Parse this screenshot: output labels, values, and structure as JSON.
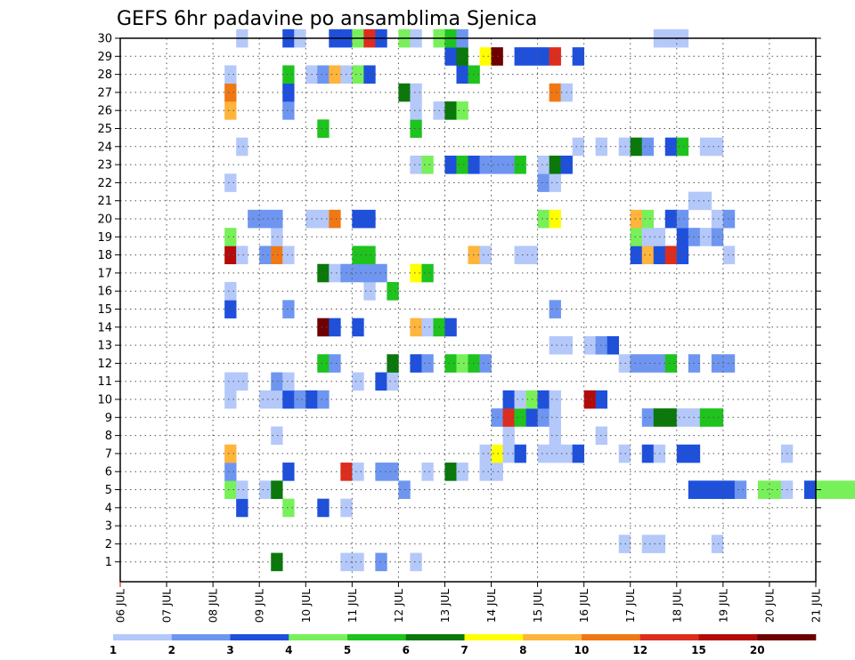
{
  "chart_data": {
    "type": "heatmap",
    "title": "GEFS 6hr padavine po ansamblima Sjenica",
    "y_categories": [
      "1",
      "2",
      "3",
      "4",
      "5",
      "6",
      "7",
      "8",
      "9",
      "10",
      "11",
      "12",
      "13",
      "14",
      "15",
      "16",
      "17",
      "18",
      "19",
      "20",
      "21",
      "22",
      "23",
      "24",
      "25",
      "26",
      "27",
      "28",
      "29",
      "30"
    ],
    "x_tick_labels": [
      "06 JUL",
      "07 JUL",
      "08 JUL",
      "09 JUL",
      "10 JUL",
      "11 JUL",
      "12 JUL",
      "13 JUL",
      "14 JUL",
      "15 JUL",
      "16 JUL",
      "17 JUL",
      "18 JUL",
      "19 JUL",
      "20 JUL",
      "21 JUL"
    ],
    "x_range_days": [
      0,
      15
    ],
    "step_hours": 6,
    "grid": true,
    "colorbar": {
      "labels": [
        "1",
        "2",
        "3",
        "4",
        "5",
        "6",
        "7",
        "8",
        "10",
        "12",
        "15",
        "20"
      ],
      "colors": [
        "#b4c8fa",
        "#6e96f0",
        "#1e50dc",
        "#78f05a",
        "#1ec31e",
        "#0a780a",
        "#ffff00",
        "#ffb43c",
        "#f07814",
        "#dc2d1e",
        "#b40a0a",
        "#6e0000"
      ]
    },
    "cells": [
      [
        1,
        13,
        5
      ],
      [
        1,
        19,
        0
      ],
      [
        1,
        20,
        0
      ],
      [
        1,
        22,
        1
      ],
      [
        1,
        25,
        0
      ],
      [
        2,
        43,
        0
      ],
      [
        2,
        45,
        0
      ],
      [
        2,
        46,
        0
      ],
      [
        2,
        51,
        0
      ],
      [
        4,
        10,
        2
      ],
      [
        4,
        14,
        3
      ],
      [
        4,
        17,
        2
      ],
      [
        4,
        19,
        0
      ],
      [
        5,
        9,
        3
      ],
      [
        5,
        10,
        0
      ],
      [
        5,
        12,
        0
      ],
      [
        5,
        13,
        5
      ],
      [
        5,
        24,
        1
      ],
      [
        5,
        49,
        2
      ],
      [
        5,
        50,
        2
      ],
      [
        5,
        51,
        2
      ],
      [
        5,
        52,
        2
      ],
      [
        5,
        53,
        1
      ],
      [
        5,
        55,
        3
      ],
      [
        5,
        56,
        3
      ],
      [
        5,
        57,
        0
      ],
      [
        5,
        59,
        2
      ],
      [
        5,
        60,
        3
      ],
      [
        5,
        61,
        3
      ],
      [
        5,
        62,
        3
      ],
      [
        5,
        63,
        3
      ],
      [
        5,
        64,
        3
      ],
      [
        5,
        65,
        3
      ],
      [
        5,
        66,
        2
      ],
      [
        5,
        67,
        1
      ],
      [
        6,
        9,
        1
      ],
      [
        6,
        14,
        2
      ],
      [
        6,
        19,
        9
      ],
      [
        6,
        20,
        0
      ],
      [
        6,
        22,
        1
      ],
      [
        6,
        23,
        1
      ],
      [
        6,
        26,
        0
      ],
      [
        6,
        28,
        5
      ],
      [
        6,
        29,
        0
      ],
      [
        6,
        31,
        0
      ],
      [
        6,
        32,
        0
      ],
      [
        7,
        9,
        7
      ],
      [
        7,
        31,
        0
      ],
      [
        7,
        32,
        6
      ],
      [
        7,
        33,
        0
      ],
      [
        7,
        34,
        2
      ],
      [
        7,
        36,
        0
      ],
      [
        7,
        37,
        0
      ],
      [
        7,
        38,
        0
      ],
      [
        7,
        39,
        2
      ],
      [
        7,
        43,
        0
      ],
      [
        7,
        45,
        2
      ],
      [
        7,
        46,
        0
      ],
      [
        7,
        48,
        2
      ],
      [
        7,
        49,
        2
      ],
      [
        7,
        57,
        0
      ],
      [
        8,
        13,
        0
      ],
      [
        8,
        33,
        0
      ],
      [
        8,
        37,
        0
      ],
      [
        8,
        41,
        0
      ],
      [
        9,
        32,
        1
      ],
      [
        9,
        33,
        9
      ],
      [
        9,
        34,
        4
      ],
      [
        9,
        35,
        2
      ],
      [
        9,
        36,
        1
      ],
      [
        9,
        37,
        0
      ],
      [
        9,
        45,
        1
      ],
      [
        9,
        46,
        5
      ],
      [
        9,
        47,
        5
      ],
      [
        9,
        48,
        0
      ],
      [
        9,
        49,
        0
      ],
      [
        9,
        50,
        4
      ],
      [
        9,
        51,
        4
      ],
      [
        10,
        9,
        0
      ],
      [
        10,
        12,
        0
      ],
      [
        10,
        13,
        0
      ],
      [
        10,
        14,
        2
      ],
      [
        10,
        15,
        1
      ],
      [
        10,
        16,
        2
      ],
      [
        10,
        17,
        1
      ],
      [
        10,
        33,
        2
      ],
      [
        10,
        34,
        0
      ],
      [
        10,
        35,
        3
      ],
      [
        10,
        36,
        2
      ],
      [
        10,
        37,
        0
      ],
      [
        10,
        40,
        10
      ],
      [
        10,
        41,
        2
      ],
      [
        11,
        9,
        0
      ],
      [
        11,
        10,
        0
      ],
      [
        11,
        13,
        1
      ],
      [
        11,
        14,
        0
      ],
      [
        11,
        20,
        0
      ],
      [
        11,
        22,
        2
      ],
      [
        11,
        23,
        0
      ],
      [
        12,
        17,
        4
      ],
      [
        12,
        18,
        1
      ],
      [
        12,
        23,
        5
      ],
      [
        12,
        25,
        2
      ],
      [
        12,
        26,
        1
      ],
      [
        12,
        28,
        4
      ],
      [
        12,
        29,
        3
      ],
      [
        12,
        30,
        4
      ],
      [
        12,
        31,
        1
      ],
      [
        12,
        43,
        0
      ],
      [
        12,
        44,
        1
      ],
      [
        12,
        45,
        1
      ],
      [
        12,
        46,
        1
      ],
      [
        12,
        47,
        4
      ],
      [
        12,
        49,
        1
      ],
      [
        12,
        51,
        1
      ],
      [
        12,
        52,
        1
      ],
      [
        13,
        37,
        0
      ],
      [
        13,
        38,
        0
      ],
      [
        13,
        40,
        0
      ],
      [
        13,
        41,
        1
      ],
      [
        13,
        42,
        2
      ],
      [
        14,
        17,
        11
      ],
      [
        14,
        18,
        2
      ],
      [
        14,
        20,
        2
      ],
      [
        14,
        25,
        7
      ],
      [
        14,
        26,
        0
      ],
      [
        14,
        27,
        4
      ],
      [
        14,
        28,
        2
      ],
      [
        15,
        9,
        2
      ],
      [
        15,
        14,
        1
      ],
      [
        15,
        37,
        1
      ],
      [
        16,
        9,
        0
      ],
      [
        16,
        21,
        0
      ],
      [
        16,
        23,
        4
      ],
      [
        17,
        17,
        5
      ],
      [
        17,
        18,
        0
      ],
      [
        17,
        19,
        1
      ],
      [
        17,
        20,
        1
      ],
      [
        17,
        21,
        1
      ],
      [
        17,
        22,
        1
      ],
      [
        17,
        25,
        6
      ],
      [
        17,
        26,
        4
      ],
      [
        18,
        9,
        10
      ],
      [
        18,
        10,
        0
      ],
      [
        18,
        12,
        1
      ],
      [
        18,
        13,
        8
      ],
      [
        18,
        14,
        0
      ],
      [
        18,
        20,
        4
      ],
      [
        18,
        21,
        4
      ],
      [
        18,
        30,
        7
      ],
      [
        18,
        31,
        0
      ],
      [
        18,
        34,
        0
      ],
      [
        18,
        35,
        0
      ],
      [
        18,
        44,
        2
      ],
      [
        18,
        45,
        7
      ],
      [
        18,
        46,
        2
      ],
      [
        18,
        47,
        9
      ],
      [
        18,
        48,
        2
      ],
      [
        18,
        52,
        0
      ],
      [
        19,
        9,
        3
      ],
      [
        19,
        13,
        0
      ],
      [
        19,
        44,
        3
      ],
      [
        19,
        45,
        0
      ],
      [
        19,
        46,
        0
      ],
      [
        19,
        48,
        2
      ],
      [
        19,
        49,
        1
      ],
      [
        19,
        50,
        0
      ],
      [
        19,
        51,
        1
      ],
      [
        20,
        11,
        1
      ],
      [
        20,
        12,
        1
      ],
      [
        20,
        13,
        1
      ],
      [
        20,
        16,
        0
      ],
      [
        20,
        17,
        0
      ],
      [
        20,
        18,
        8
      ],
      [
        20,
        20,
        2
      ],
      [
        20,
        21,
        2
      ],
      [
        20,
        36,
        3
      ],
      [
        20,
        37,
        6
      ],
      [
        20,
        44,
        7
      ],
      [
        20,
        45,
        3
      ],
      [
        20,
        47,
        2
      ],
      [
        20,
        48,
        1
      ],
      [
        20,
        51,
        0
      ],
      [
        20,
        52,
        1
      ],
      [
        21,
        49,
        0
      ],
      [
        21,
        50,
        0
      ],
      [
        22,
        9,
        0
      ],
      [
        22,
        36,
        1
      ],
      [
        22,
        37,
        0
      ],
      [
        23,
        25,
        0
      ],
      [
        23,
        26,
        3
      ],
      [
        23,
        28,
        2
      ],
      [
        23,
        29,
        4
      ],
      [
        23,
        30,
        2
      ],
      [
        23,
        31,
        1
      ],
      [
        23,
        32,
        1
      ],
      [
        23,
        33,
        1
      ],
      [
        23,
        34,
        4
      ],
      [
        23,
        36,
        0
      ],
      [
        23,
        37,
        5
      ],
      [
        23,
        38,
        2
      ],
      [
        24,
        10,
        0
      ],
      [
        24,
        39,
        0
      ],
      [
        24,
        41,
        0
      ],
      [
        24,
        43,
        0
      ],
      [
        24,
        44,
        5
      ],
      [
        24,
        45,
        1
      ],
      [
        24,
        47,
        2
      ],
      [
        24,
        48,
        4
      ],
      [
        24,
        50,
        0
      ],
      [
        24,
        51,
        0
      ],
      [
        25,
        17,
        4
      ],
      [
        25,
        25,
        4
      ],
      [
        26,
        9,
        7
      ],
      [
        26,
        14,
        1
      ],
      [
        26,
        25,
        0
      ],
      [
        26,
        27,
        0
      ],
      [
        26,
        28,
        5
      ],
      [
        26,
        29,
        3
      ],
      [
        27,
        9,
        8
      ],
      [
        27,
        14,
        2
      ],
      [
        27,
        24,
        5
      ],
      [
        27,
        25,
        0
      ],
      [
        27,
        37,
        8
      ],
      [
        27,
        38,
        0
      ],
      [
        28,
        9,
        0
      ],
      [
        28,
        14,
        4
      ],
      [
        28,
        16,
        0
      ],
      [
        28,
        17,
        1
      ],
      [
        28,
        18,
        7
      ],
      [
        28,
        19,
        0
      ],
      [
        28,
        20,
        3
      ],
      [
        28,
        21,
        2
      ],
      [
        28,
        29,
        2
      ],
      [
        28,
        30,
        4
      ],
      [
        29,
        28,
        2
      ],
      [
        29,
        29,
        5
      ],
      [
        29,
        31,
        6
      ],
      [
        29,
        32,
        11
      ],
      [
        29,
        34,
        2
      ],
      [
        29,
        35,
        2
      ],
      [
        29,
        36,
        2
      ],
      [
        29,
        37,
        9
      ],
      [
        29,
        39,
        2
      ],
      [
        30,
        10,
        0
      ],
      [
        30,
        14,
        2
      ],
      [
        30,
        15,
        0
      ],
      [
        30,
        18,
        2
      ],
      [
        30,
        19,
        2
      ],
      [
        30,
        20,
        3
      ],
      [
        30,
        21,
        9
      ],
      [
        30,
        22,
        2
      ],
      [
        30,
        24,
        3
      ],
      [
        30,
        25,
        0
      ],
      [
        30,
        27,
        3
      ],
      [
        30,
        28,
        4
      ],
      [
        30,
        29,
        1
      ],
      [
        30,
        46,
        0
      ],
      [
        30,
        47,
        0
      ],
      [
        30,
        48,
        0
      ]
    ]
  }
}
